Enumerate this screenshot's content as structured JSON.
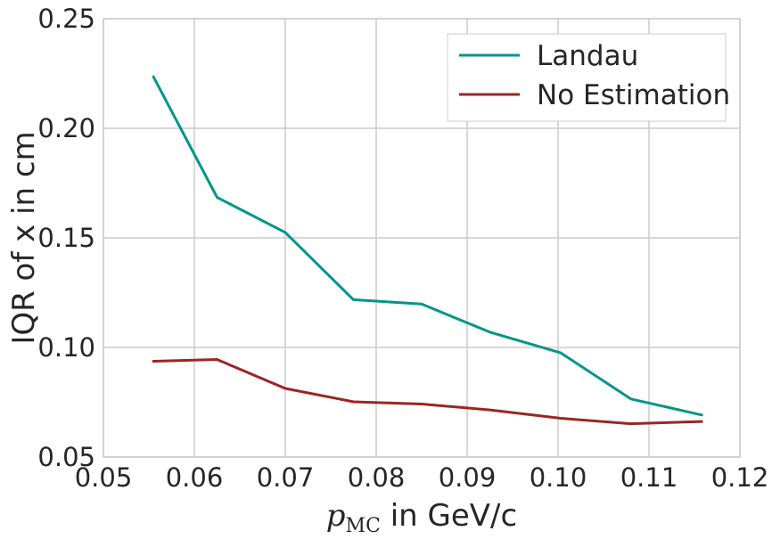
{
  "chart_data": {
    "type": "line",
    "xlabel_math_symbol": "p",
    "xlabel_math_sub": "MC",
    "xlabel_suffix": " in GeV/c",
    "ylabel": "IQR of x in cm",
    "xlim": [
      0.05,
      0.12
    ],
    "ylim": [
      0.05,
      0.25
    ],
    "xticks": [
      "0.05",
      "0.06",
      "0.07",
      "0.08",
      "0.09",
      "0.10",
      "0.11",
      "0.12"
    ],
    "yticks": [
      "0.05",
      "0.10",
      "0.15",
      "0.20",
      "0.25"
    ],
    "grid": true,
    "legend_position": "top-right",
    "series": [
      {
        "name": "Landau",
        "color": "#00968a",
        "x": [
          0.0555,
          0.0625,
          0.07,
          0.0775,
          0.085,
          0.0925,
          0.1003,
          0.108,
          0.1158
        ],
        "y": [
          0.2235,
          0.1685,
          0.1525,
          0.1218,
          0.1198,
          0.107,
          0.0975,
          0.0765,
          0.0692
        ]
      },
      {
        "name": "No Estimation",
        "color": "#9e2424",
        "x": [
          0.0555,
          0.0625,
          0.07,
          0.0775,
          0.085,
          0.0925,
          0.1003,
          0.108,
          0.1158
        ],
        "y": [
          0.0937,
          0.0945,
          0.0813,
          0.0752,
          0.0742,
          0.0715,
          0.0677,
          0.0652,
          0.0662
        ]
      }
    ]
  }
}
